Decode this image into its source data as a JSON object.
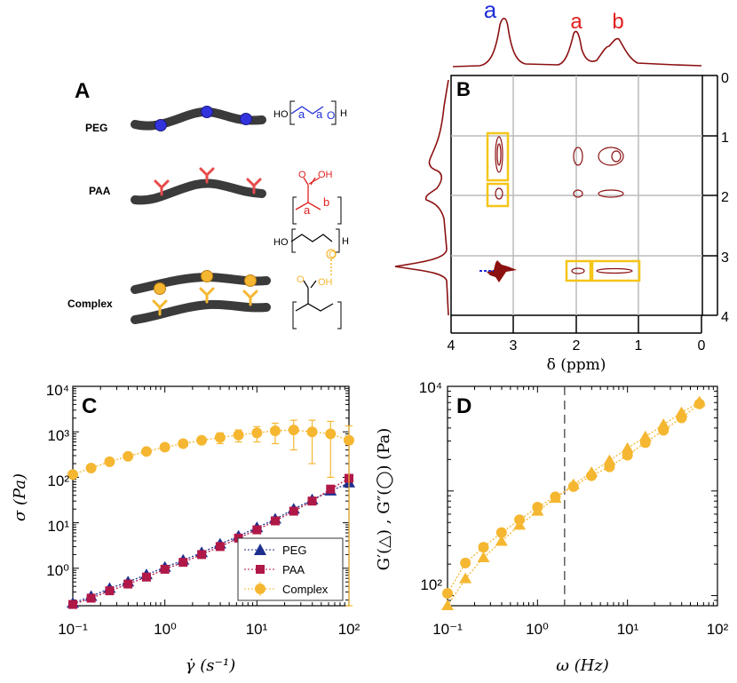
{
  "panels": {
    "A": {
      "label": "A",
      "rows": [
        {
          "name": "PEG",
          "color": "#3333dd"
        },
        {
          "name": "PAA",
          "color": "#e84a4a"
        },
        {
          "name": "Complex",
          "color": "#f5b731"
        }
      ],
      "chem": {
        "ho": "HO",
        "h": "H",
        "o": "O",
        "oh": "OH",
        "a": "a",
        "b": "b"
      }
    },
    "B": {
      "label": "B",
      "xlabel": "δ (ppm)",
      "x_ticks": [
        "4",
        "3",
        "2",
        "1",
        "0"
      ],
      "y_ticks": [
        "0",
        "1",
        "2",
        "3",
        "4"
      ],
      "peak_labels": [
        {
          "text": "a",
          "color": "#1f2fd6"
        },
        {
          "text": "a",
          "color": "#e02020"
        },
        {
          "text": "b",
          "color": "#e02020"
        }
      ],
      "line_color": "#8b1010"
    }
  },
  "chart_data": [
    {
      "panel": "C",
      "type": "scatter",
      "label": "C",
      "xscale": "log",
      "yscale": "log",
      "xlim": [
        0.1,
        100
      ],
      "ylim": [
        0.15,
        10000
      ],
      "xlabel": "γ̇ (s⁻¹)",
      "ylabel": "σ (Pa)",
      "x_ticks": [
        "10⁻¹",
        "10⁰",
        "10¹",
        "10²"
      ],
      "y_ticks": [
        "10⁰",
        "10¹",
        "10²",
        "10³",
        "10⁴"
      ],
      "legend_position": "bottom-right",
      "series": [
        {
          "name": "PEG",
          "marker": "triangle",
          "color": "#1f2f8f",
          "x": [
            0.1,
            0.158,
            0.251,
            0.398,
            0.631,
            1.0,
            1.58,
            2.51,
            3.98,
            6.31,
            10.0,
            15.8,
            25.1,
            39.8,
            63.1,
            100
          ],
          "y": [
            0.17,
            0.24,
            0.36,
            0.5,
            0.72,
            1.05,
            1.5,
            2.2,
            3.4,
            5.1,
            7.8,
            12,
            20,
            32,
            50,
            75
          ]
        },
        {
          "name": "PAA",
          "marker": "square",
          "color": "#b01848",
          "x": [
            0.1,
            0.158,
            0.251,
            0.398,
            0.631,
            1.0,
            1.58,
            2.51,
            3.98,
            6.31,
            10.0,
            15.8,
            25.1,
            39.8,
            63.1,
            100
          ],
          "y": [
            0.16,
            0.22,
            0.32,
            0.45,
            0.64,
            0.95,
            1.35,
            2.0,
            3.0,
            4.6,
            7.0,
            11,
            18,
            30,
            55,
            95
          ]
        },
        {
          "name": "Complex",
          "marker": "circle",
          "color": "#f5b731",
          "x": [
            0.1,
            0.158,
            0.251,
            0.398,
            0.631,
            1.0,
            1.58,
            2.51,
            3.98,
            6.31,
            10.0,
            15.8,
            25.1,
            39.8,
            63.1,
            100
          ],
          "y": [
            115,
            160,
            220,
            290,
            370,
            460,
            550,
            650,
            750,
            850,
            950,
            1050,
            1100,
            1000,
            900,
            650
          ],
          "err": [
            0,
            0,
            0,
            0,
            0,
            0,
            0,
            0,
            200,
            250,
            350,
            500,
            700,
            800,
            800,
            700
          ]
        }
      ]
    },
    {
      "panel": "D",
      "type": "scatter",
      "label": "D",
      "xscale": "log",
      "yscale": "log",
      "xlim": [
        0.1,
        100
      ],
      "ylim": [
        80,
        10000
      ],
      "xlabel": "ω (Hz)",
      "ylabel": "G′(△) , G″(◯) (Pa)",
      "x_ticks": [
        "10⁻¹",
        "10⁰",
        "10¹",
        "10²"
      ],
      "y_ticks": [
        "10²",
        "10⁴"
      ],
      "vline_x": 2.0,
      "series": [
        {
          "name": "G'",
          "marker": "triangle",
          "color": "#f5b731",
          "x": [
            0.1,
            0.158,
            0.251,
            0.398,
            0.631,
            1.0,
            1.58,
            2.51,
            3.98,
            6.31,
            10.0,
            15.8,
            25.1,
            39.8,
            63.1
          ],
          "y": [
            80,
            145,
            230,
            330,
            470,
            640,
            850,
            1150,
            1500,
            1950,
            2550,
            3300,
            4300,
            5600,
            7100
          ]
        },
        {
          "name": "G''",
          "marker": "circle",
          "color": "#f5b731",
          "x": [
            0.1,
            0.158,
            0.251,
            0.398,
            0.631,
            1.0,
            1.58,
            2.51,
            3.98,
            6.31,
            10.0,
            15.8,
            25.1,
            39.8,
            63.1
          ],
          "y": [
            105,
            205,
            290,
            400,
            530,
            700,
            880,
            1100,
            1400,
            1700,
            2200,
            2900,
            3800,
            5000,
            6800
          ]
        }
      ]
    }
  ]
}
